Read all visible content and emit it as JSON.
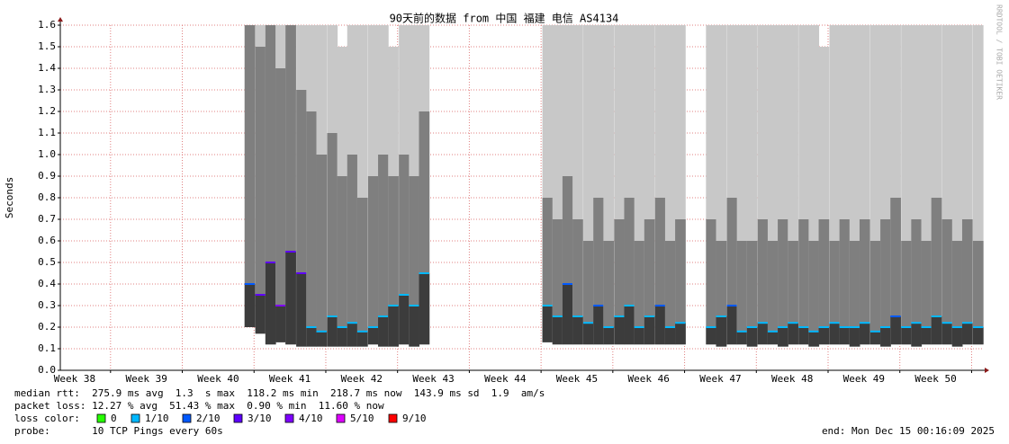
{
  "chart_data": {
    "type": "smoke",
    "title": "90天前的数据 from 中国 福建 电信 AS4134",
    "ylabel": "Seconds",
    "watermark": "RRDTOOL / TOBI OETIKER",
    "xlim": [
      37.8,
      50.67
    ],
    "xticks": [
      {
        "value": 38,
        "label": "Week 38"
      },
      {
        "value": 39,
        "label": "Week 39"
      },
      {
        "value": 40,
        "label": "Week 40"
      },
      {
        "value": 41,
        "label": "Week 41"
      },
      {
        "value": 42,
        "label": "Week 42"
      },
      {
        "value": 43,
        "label": "Week 43"
      },
      {
        "value": 44,
        "label": "Week 44"
      },
      {
        "value": 45,
        "label": "Week 45"
      },
      {
        "value": 46,
        "label": "Week 46"
      },
      {
        "value": 47,
        "label": "Week 47"
      },
      {
        "value": 48,
        "label": "Week 48"
      },
      {
        "value": 49,
        "label": "Week 49"
      },
      {
        "value": 50,
        "label": "Week 50"
      }
    ],
    "ylim": [
      0,
      1.6
    ],
    "yticks": [
      {
        "value": 0,
        "label": "0.0"
      },
      0.1,
      0.2,
      0.3,
      0.4,
      0.5,
      0.6,
      0.7,
      0.8,
      0.9,
      {
        "value": 1,
        "label": "1.0"
      },
      1.1,
      1.2,
      1.3,
      1.4,
      1.5,
      1.6
    ],
    "grid": true,
    "x": [
      40.44,
      40.59,
      40.73,
      40.87,
      41.01,
      41.16,
      41.3,
      41.44,
      41.59,
      41.73,
      41.87,
      42.01,
      42.16,
      42.3,
      42.44,
      42.59,
      42.73,
      42.87,
      44.59,
      44.73,
      44.87,
      45.01,
      45.16,
      45.3,
      45.44,
      45.59,
      45.73,
      45.87,
      46.01,
      46.16,
      46.3,
      46.44,
      46.87,
      47.01,
      47.16,
      47.3,
      47.44,
      47.59,
      47.73,
      47.87,
      48.01,
      48.16,
      48.3,
      48.44,
      48.59,
      48.73,
      48.87,
      49.01,
      49.16,
      49.3,
      49.44,
      49.59,
      49.73,
      49.87,
      50.01,
      50.16,
      50.3,
      50.44,
      50.59
    ],
    "median": [
      0.4,
      0.35,
      0.5,
      0.3,
      0.55,
      0.45,
      0.2,
      0.18,
      0.25,
      0.2,
      0.22,
      0.18,
      0.2,
      0.25,
      0.3,
      0.35,
      0.3,
      0.45,
      0.3,
      0.25,
      0.4,
      0.25,
      0.22,
      0.3,
      0.2,
      0.25,
      0.3,
      0.2,
      0.25,
      0.3,
      0.2,
      0.22,
      0.2,
      0.25,
      0.3,
      0.18,
      0.2,
      0.22,
      0.18,
      0.2,
      0.22,
      0.2,
      0.18,
      0.2,
      0.22,
      0.2,
      0.2,
      0.22,
      0.18,
      0.2,
      0.25,
      0.2,
      0.22,
      0.2,
      0.25,
      0.22,
      0.2,
      0.22,
      0.2
    ],
    "smoke_min": [
      0.2,
      0.17,
      0.12,
      0.13,
      0.12,
      0.11,
      0.11,
      0.11,
      0.11,
      0.11,
      0.11,
      0.11,
      0.12,
      0.11,
      0.11,
      0.12,
      0.11,
      0.12,
      0.13,
      0.12,
      0.12,
      0.12,
      0.12,
      0.12,
      0.12,
      0.12,
      0.12,
      0.12,
      0.12,
      0.12,
      0.12,
      0.12,
      0.12,
      0.11,
      0.12,
      0.12,
      0.11,
      0.12,
      0.12,
      0.11,
      0.12,
      0.12,
      0.11,
      0.12,
      0.12,
      0.12,
      0.11,
      0.12,
      0.12,
      0.11,
      0.12,
      0.12,
      0.11,
      0.12,
      0.12,
      0.12,
      0.11,
      0.12,
      0.12
    ],
    "smoke_upper": [
      1.6,
      1.5,
      1.6,
      1.4,
      1.6,
      1.3,
      1.2,
      1.0,
      1.1,
      0.9,
      1.0,
      0.8,
      0.9,
      1.0,
      0.9,
      1.0,
      0.9,
      1.2,
      0.8,
      0.7,
      0.9,
      0.7,
      0.6,
      0.8,
      0.6,
      0.7,
      0.8,
      0.6,
      0.7,
      0.8,
      0.6,
      0.7,
      0.7,
      0.6,
      0.8,
      0.6,
      0.6,
      0.7,
      0.6,
      0.7,
      0.6,
      0.7,
      0.6,
      0.7,
      0.6,
      0.7,
      0.6,
      0.7,
      0.6,
      0.7,
      0.8,
      0.6,
      0.7,
      0.6,
      0.8,
      0.7,
      0.6,
      0.7,
      0.6
    ],
    "smoke_max": [
      1.6,
      1.6,
      1.6,
      1.6,
      1.6,
      1.6,
      1.6,
      1.6,
      1.6,
      1.5,
      1.6,
      1.6,
      1.6,
      1.6,
      1.5,
      1.6,
      1.6,
      1.6,
      1.6,
      1.6,
      1.6,
      1.6,
      1.6,
      1.6,
      1.6,
      1.6,
      1.6,
      1.6,
      1.6,
      1.6,
      1.6,
      1.6,
      1.6,
      1.6,
      1.6,
      1.6,
      1.6,
      1.6,
      1.6,
      1.6,
      1.6,
      1.6,
      1.6,
      1.5,
      1.6,
      1.6,
      1.6,
      1.6,
      1.6,
      1.6,
      1.6,
      1.6,
      1.6,
      1.6,
      1.6,
      1.6,
      1.6,
      1.6,
      1.6
    ],
    "loss": [
      2,
      3,
      3,
      4,
      3,
      3,
      1,
      1,
      1,
      1,
      1,
      1,
      1,
      1,
      1,
      1,
      1,
      1,
      1,
      1,
      2,
      1,
      1,
      2,
      1,
      1,
      1,
      1,
      1,
      2,
      1,
      1,
      1,
      1,
      2,
      1,
      1,
      1,
      1,
      1,
      1,
      1,
      1,
      1,
      1,
      1,
      1,
      1,
      1,
      1,
      2,
      1,
      1,
      1,
      1,
      1,
      1,
      1,
      1
    ],
    "loss_title": "loss color:",
    "loss_legend": [
      {
        "value": 0,
        "label": "0",
        "color": "#26ff00"
      },
      {
        "value": 1,
        "label": "1/10",
        "color": "#00b8ff"
      },
      {
        "value": 2,
        "label": "2/10",
        "color": "#0059ff"
      },
      {
        "value": 3,
        "label": "3/10",
        "color": "#5e00ff"
      },
      {
        "value": 4,
        "label": "4/10",
        "color": "#7e00ff"
      },
      {
        "value": 5,
        "label": "5/10",
        "color": "#dd00ff"
      },
      {
        "value": 9,
        "label": "9/10",
        "color": "#ff0000"
      }
    ],
    "stats": [
      "median rtt:  275.9 ms avg  1.3  s max  118.2 ms min  218.7 ms now  143.9 ms sd  1.9  am/s",
      "packet loss: 12.27 % avg  51.43 % max  0.90 % min  11.60 % now"
    ],
    "probe": "probe:       10 TCP Pings every 60s",
    "end": "end: Mon Dec 15 00:16:09 2025"
  }
}
